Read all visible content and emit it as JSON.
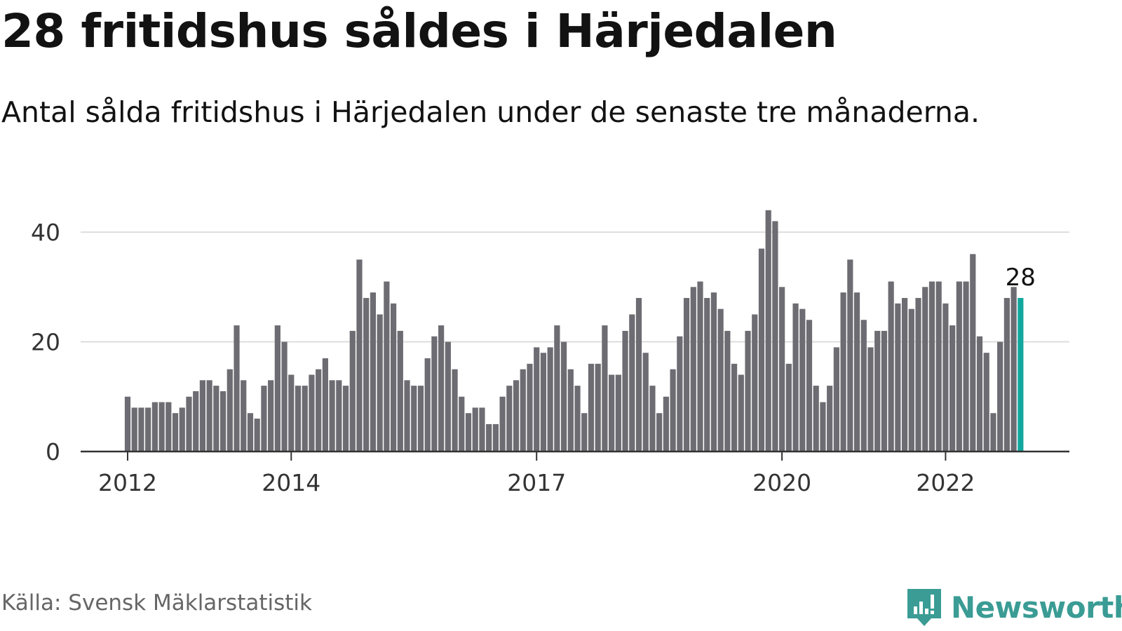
{
  "title": "28 fritidshus såldes i Härjedalen",
  "subtitle": "Antal sålda fritidshus i Härjedalen under de senaste tre månaderna.",
  "source": "Källa: Svensk Mäklarstatistik",
  "brand": {
    "name": "Newsworthy",
    "icon": "newsworthy-logo-icon",
    "color": "#3a9c94"
  },
  "colors": {
    "bar": "#6d6c72",
    "highlight": "#13a89e",
    "grid": "#dddddd",
    "axis": "#333333"
  },
  "chart_data": {
    "type": "bar",
    "x_start": "2012-01",
    "frequency": "monthly",
    "x_tick_labels": [
      "2012",
      "2014",
      "2017",
      "2020",
      "2022"
    ],
    "x_tick_months": [
      "2012-01",
      "2014-01",
      "2017-01",
      "2020-01",
      "2022-01"
    ],
    "y_ticks": [
      0,
      20,
      40
    ],
    "ylim": [
      0,
      45
    ],
    "grid": true,
    "highlight_last": true,
    "last_value_label": "28",
    "values": [
      10,
      8,
      8,
      8,
      9,
      9,
      9,
      7,
      8,
      10,
      11,
      13,
      13,
      12,
      11,
      15,
      23,
      13,
      7,
      6,
      12,
      13,
      23,
      20,
      14,
      12,
      12,
      14,
      15,
      17,
      13,
      13,
      12,
      22,
      35,
      28,
      29,
      25,
      31,
      27,
      22,
      13,
      12,
      12,
      17,
      21,
      23,
      20,
      15,
      10,
      7,
      8,
      8,
      5,
      5,
      10,
      12,
      13,
      15,
      16,
      19,
      18,
      19,
      23,
      20,
      15,
      12,
      7,
      16,
      16,
      23,
      14,
      14,
      22,
      25,
      28,
      18,
      12,
      7,
      10,
      15,
      21,
      28,
      30,
      31,
      28,
      29,
      26,
      22,
      16,
      14,
      22,
      25,
      37,
      44,
      42,
      30,
      16,
      27,
      26,
      24,
      12,
      9,
      12,
      19,
      29,
      35,
      29,
      24,
      19,
      22,
      22,
      31,
      27,
      28,
      26,
      28,
      30,
      31,
      31,
      27,
      23,
      31,
      31,
      36,
      21,
      18,
      7,
      20,
      28,
      30,
      28
    ]
  }
}
